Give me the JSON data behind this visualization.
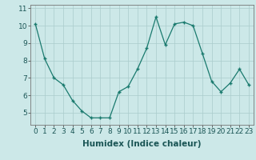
{
  "x": [
    0,
    1,
    2,
    3,
    4,
    5,
    6,
    7,
    8,
    9,
    10,
    11,
    12,
    13,
    14,
    15,
    16,
    17,
    18,
    19,
    20,
    21,
    22,
    23
  ],
  "y": [
    10.1,
    8.1,
    7.0,
    6.6,
    5.7,
    5.1,
    4.7,
    4.7,
    4.7,
    6.2,
    6.5,
    7.5,
    8.7,
    10.5,
    8.9,
    10.1,
    10.2,
    10.0,
    8.4,
    6.8,
    6.2,
    6.7,
    7.5,
    6.6
  ],
  "xlabel": "Humidex (Indice chaleur)",
  "ylim": [
    4.3,
    11.2
  ],
  "xlim": [
    -0.5,
    23.5
  ],
  "yticks": [
    5,
    6,
    7,
    8,
    9,
    10,
    11
  ],
  "xticks": [
    0,
    1,
    2,
    3,
    4,
    5,
    6,
    7,
    8,
    9,
    10,
    11,
    12,
    13,
    14,
    15,
    16,
    17,
    18,
    19,
    20,
    21,
    22,
    23
  ],
  "line_color": "#1a7a6e",
  "marker": "+",
  "bg_color": "#cce8e8",
  "grid_color": "#aacccc",
  "tick_label_fontsize": 6.5,
  "xlabel_fontsize": 7.5
}
